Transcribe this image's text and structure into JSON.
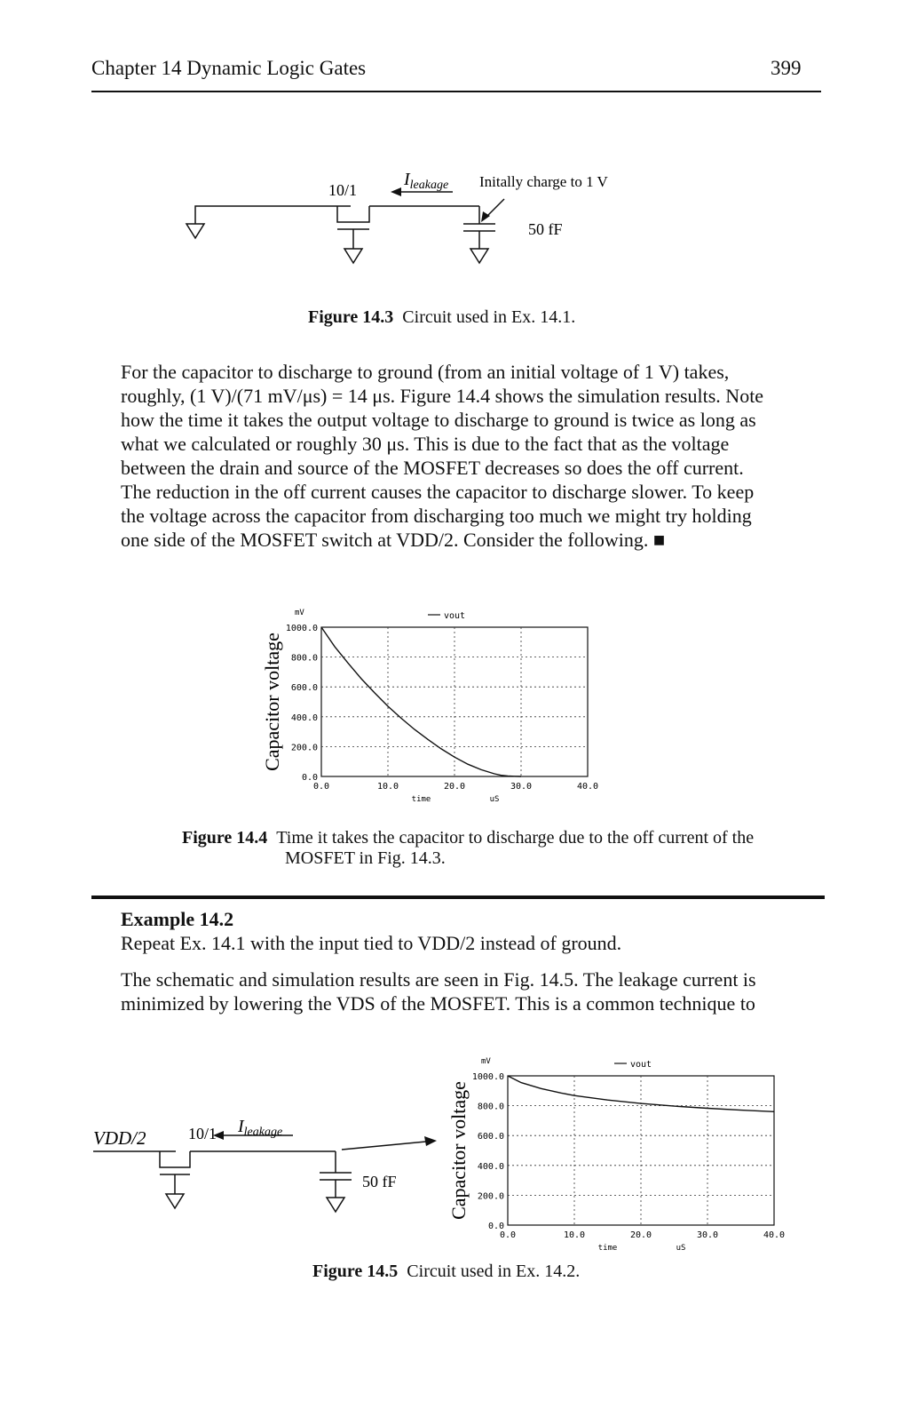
{
  "header": {
    "chapter": "Chapter 14 Dynamic Logic Gates",
    "page_number": "399"
  },
  "fig143": {
    "ratio": "10/1",
    "current_label": "I",
    "current_sub": "leakage",
    "charge_note": "Initally charge to 1 V",
    "cap_value": "50 fF",
    "caption_label": "Figure 14.3",
    "caption_text": "Circuit used in Ex. 14.1."
  },
  "body1": {
    "lines": [
      "For the capacitor to discharge to ground (from an initial voltage of 1 V) takes,",
      "roughly, (1 V)/(71 mV/μs) = 14 μs. Figure 14.4 shows the simulation results. Note",
      "how the time it takes the output voltage to discharge to ground is twice as long as",
      "what we calculated or roughly 30 μs. This is due to the fact that as the voltage",
      "between the drain and source of the MOSFET decreases so does the off current.",
      "The reduction in the off current causes the capacitor to discharge slower. To keep",
      "the voltage across the capacitor from discharging too much we might try holding",
      "one side of the MOSFET switch at VDD/2. Consider the following. ■"
    ]
  },
  "fig144": {
    "caption_label": "Figure 14.4",
    "caption_line1": "Time it takes the capacitor to discharge due to the off current of the",
    "caption_line2": "MOSFET in Fig. 14.3."
  },
  "example": {
    "title": "Example 14.2",
    "prompt": "Repeat Ex. 14.1 with the input tied to VDD/2 instead of ground.",
    "answer_line1": "The schematic and simulation results are seen in Fig. 14.5. The leakage current is",
    "answer_line2": "minimized by lowering the VDS of the MOSFET. This is a common technique to"
  },
  "fig145": {
    "vdd_label": "VDD/2",
    "ratio": "10/1",
    "current_label": "I",
    "current_sub": "leakage",
    "cap_value": "50 fF",
    "caption_label": "Figure 14.5",
    "caption_text": "Circuit used in Ex. 14.2."
  },
  "chart_data": [
    {
      "type": "line",
      "ylabel": "Capacitor voltage",
      "y_unit": "mV",
      "xlabel": "time",
      "x_unit": "uS",
      "legend": "vout",
      "legend_position": "top",
      "xlim": [
        0,
        40
      ],
      "ylim": [
        0,
        1000
      ],
      "x_ticks": [
        "0.0",
        "10.0",
        "20.0",
        "30.0",
        "40.0"
      ],
      "y_ticks": [
        "0.0",
        "200.0",
        "400.0",
        "600.0",
        "800.0",
        "1000.0"
      ],
      "grid": true,
      "series": [
        {
          "name": "vout",
          "x": [
            0,
            1,
            2,
            4,
            6,
            8,
            10,
            12,
            14,
            16,
            18,
            20,
            22,
            24,
            26,
            27,
            28,
            29,
            30
          ],
          "y": [
            1000,
            935,
            870,
            760,
            655,
            560,
            470,
            390,
            315,
            248,
            185,
            130,
            82,
            45,
            18,
            8,
            3,
            1,
            0
          ]
        }
      ]
    },
    {
      "type": "line",
      "ylabel": "Capacitor voltage",
      "y_unit": "mV",
      "xlabel": "time",
      "x_unit": "uS",
      "legend": "vout",
      "legend_position": "top",
      "xlim": [
        0,
        40
      ],
      "ylim": [
        0,
        1000
      ],
      "x_ticks": [
        "0.0",
        "10.0",
        "20.0",
        "30.0",
        "40.0"
      ],
      "y_ticks": [
        "0.0",
        "200.0",
        "400.0",
        "600.0",
        "800.0",
        "1000.0"
      ],
      "grid": true,
      "series": [
        {
          "name": "vout",
          "x": [
            0,
            2,
            5,
            8,
            10,
            15,
            20,
            25,
            30,
            35,
            40
          ],
          "y": [
            1000,
            955,
            915,
            885,
            868,
            838,
            815,
            797,
            783,
            770,
            760
          ]
        }
      ]
    }
  ]
}
